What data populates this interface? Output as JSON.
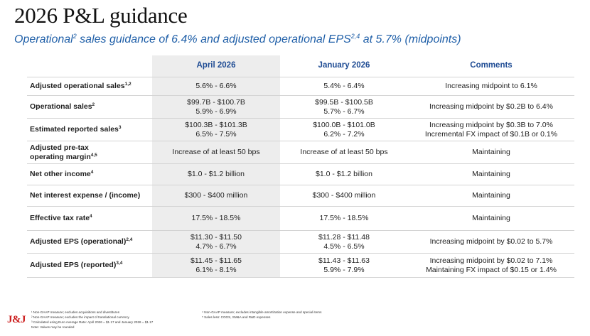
{
  "title": "2026 P&L guidance",
  "subtitle": {
    "part1": "Operational",
    "sup1": "2",
    "part2": " sales guidance of 6.4% and adjusted operational EPS",
    "sup2": "2,4",
    "part3": " at 5.7% (midpoints)"
  },
  "table": {
    "headers": {
      "april": "April 2026",
      "january": "January 2026",
      "comments": "Comments"
    },
    "rows": [
      {
        "label": "Adjusted operational sales",
        "label_sup": "1,2",
        "april": [
          "5.6% - 6.6%"
        ],
        "january": [
          "5.4% - 6.4%"
        ],
        "comments": [
          "Increasing midpoint to 6.1%"
        ]
      },
      {
        "label": "Operational sales",
        "label_sup": "2",
        "april": [
          "$99.7B - $100.7B",
          "5.9% - 6.9%"
        ],
        "january": [
          "$99.5B - $100.5B",
          "5.7% - 6.7%"
        ],
        "comments": [
          "Increasing midpoint by $0.2B to 6.4%"
        ]
      },
      {
        "label": "Estimated reported sales",
        "label_sup": "3",
        "april": [
          "$100.3B - $101.3B",
          "6.5% - 7.5%"
        ],
        "january": [
          "$100.0B - $101.0B",
          "6.2% - 7.2%"
        ],
        "comments": [
          "Increasing midpoint by $0.3B to 7.0%",
          "Incremental FX impact of $0.1B or 0.1%"
        ]
      },
      {
        "label": "Adjusted pre-tax",
        "label2": "operating margin",
        "label_sup": "4,5",
        "april": [
          "Increase of at least 50 bps"
        ],
        "january": [
          "Increase of at least 50 bps"
        ],
        "comments": [
          "Maintaining"
        ]
      },
      {
        "label": "Net other income",
        "label_sup": "4",
        "april": [
          "$1.0 - $1.2 billion"
        ],
        "january": [
          "$1.0 - $1.2 billion"
        ],
        "comments": [
          "Maintaining"
        ]
      },
      {
        "label": "Net interest expense / (income)",
        "label_sup": "",
        "april": [
          "$300 - $400 million"
        ],
        "january": [
          "$300 - $400 million"
        ],
        "comments": [
          "Maintaining"
        ]
      },
      {
        "label": "Effective tax rate",
        "label_sup": "4",
        "april": [
          "17.5% - 18.5%"
        ],
        "january": [
          "17.5% - 18.5%"
        ],
        "comments": [
          "Maintaining"
        ]
      },
      {
        "label": "Adjusted EPS (operational)",
        "label_sup": "2,4",
        "april": [
          "$11.30 - $11.50",
          "4.7% - 6.7%"
        ],
        "january": [
          "$11.28 - $11.48",
          "4.5% - 6.5%"
        ],
        "comments": [
          "Increasing midpoint by $0.02 to 5.7%"
        ]
      },
      {
        "label": "Adjusted EPS (reported)",
        "label_sup": "3,4",
        "april": [
          "$11.45 - $11.65",
          "6.1% - 8.1%"
        ],
        "january": [
          "$11.43 - $11.63",
          "5.9% - 7.9%"
        ],
        "comments": [
          "Increasing midpoint by $0.02 to 7.1%",
          "Maintaining FX impact of $0.15 or 1.4%"
        ]
      }
    ]
  },
  "footnotes": {
    "left": [
      "¹ Non-GAAP measure; excludes acquisitions and divestitures",
      "² Non-GAAP measure; excludes the impact of translational currency",
      "³ Calculated using Euro Average Rate: April 2026 = $1.17 and January 2026 = $1.17",
      "Note: Values may be rounded"
    ],
    "right": [
      "⁴ Non-GAAP measure; excludes intangible amortization expense and special items",
      "⁵ Sales less: COGS, SM&A and R&D expenses"
    ]
  },
  "logo": "J&J",
  "colors": {
    "accent": "#1f4c94",
    "subtitle": "#1f5fa8",
    "logo": "#cc1f1f",
    "highlight": "#ededed"
  }
}
